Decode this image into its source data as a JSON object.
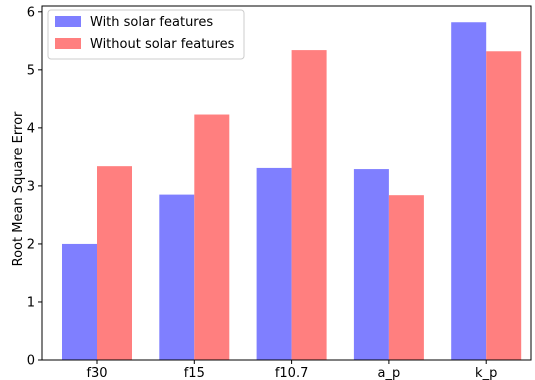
{
  "chart_data": {
    "type": "bar",
    "title": "",
    "xlabel": "",
    "ylabel": "Root Mean Square Error",
    "categories": [
      "f30",
      "f15",
      "f10.7",
      "a_p",
      "k_p"
    ],
    "series": [
      {
        "name": "With solar features",
        "color": "#7f7fff",
        "values": [
          2.0,
          2.85,
          3.31,
          3.29,
          5.82
        ]
      },
      {
        "name": "Without solar features",
        "color": "#ff7f7f",
        "values": [
          3.34,
          4.23,
          5.34,
          2.84,
          5.32
        ]
      }
    ],
    "ylim": [
      0,
      6.1
    ],
    "yticks": [
      "0",
      "1",
      "2",
      "3",
      "4",
      "5",
      "6"
    ],
    "grid": false,
    "legend_position": "top-left"
  }
}
